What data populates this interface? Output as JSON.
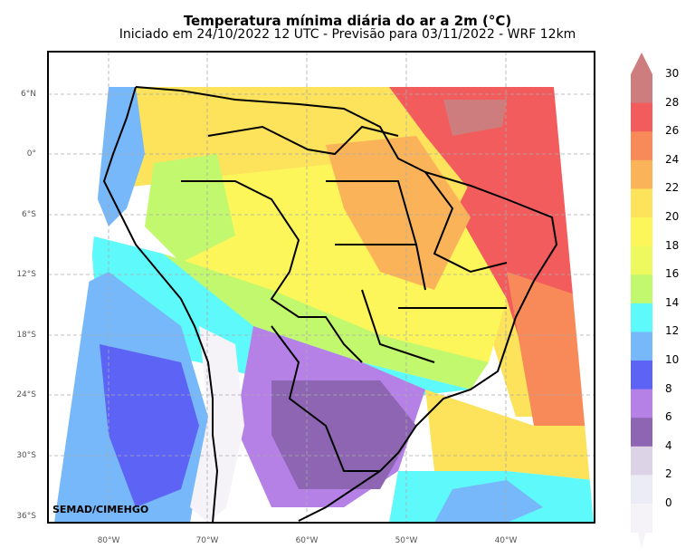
{
  "title": "Temperatura mínima diária do ar a 2m (°C)",
  "subtitle": "Iniciado em 24/10/2022 12 UTC - Previsão para 03/11/2022 - WRF 12km",
  "credit": "SEMAD/CIMEHGO",
  "lat_labels": [
    "6°N",
    "0°",
    "6°S",
    "12°S",
    "18°S",
    "24°S",
    "30°S",
    "36°S"
  ],
  "lon_labels": [
    "80°W",
    "70°W",
    "60°W",
    "50°W",
    "40°W"
  ],
  "colorbar": {
    "labels": [
      "30",
      "28",
      "26",
      "24",
      "22",
      "20",
      "18",
      "16",
      "14",
      "12",
      "10",
      "8",
      "6",
      "4",
      "2",
      "0"
    ],
    "colors": [
      "#cd7d7d",
      "#f35c5c",
      "#f88a5a",
      "#fbb35a",
      "#fde25b",
      "#fdf65a",
      "#eef95f",
      "#c2f86d",
      "#5ef9fb",
      "#76b8f9",
      "#5d63f5",
      "#b681e6",
      "#8e65b3",
      "#ddd3e6",
      "#ececf6",
      "#f5f2f8"
    ]
  },
  "map_data": {
    "variable": "minimum daily 2m air temperature",
    "units": "°C",
    "lat_range": [
      -36,
      6
    ],
    "lon_range": [
      -84,
      -33
    ]
  }
}
